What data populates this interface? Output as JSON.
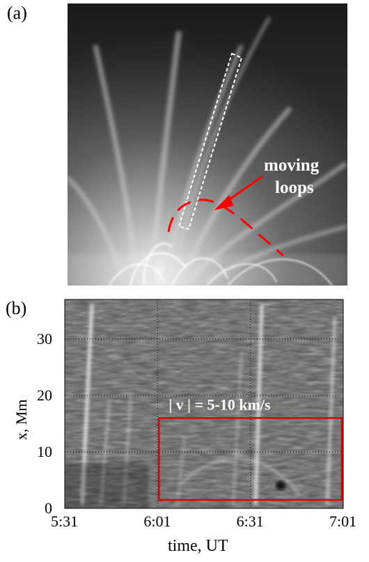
{
  "panel_a": {
    "label": "(a)",
    "annotation": [
      "moving",
      "loops"
    ],
    "colors": {
      "annotation": "#ff0000",
      "box": "#ffffff"
    }
  },
  "panel_b": {
    "label": "(b)",
    "annotation": "| v | = 5-10 km/s",
    "colors": {
      "box": "#e00000",
      "annotation": "#ffffff",
      "grid": "#000000"
    }
  },
  "chart_data": {
    "type": "heatmap",
    "xlabel": "time, UT",
    "ylabel": "x, Mm",
    "x_ticks": [
      "5:31",
      "6:01",
      "6:31",
      "7:01"
    ],
    "y_ticks": [
      "0",
      "10",
      "20",
      "30"
    ],
    "xlim": [
      "5:31",
      "7:01"
    ],
    "ylim": [
      0,
      37
    ],
    "grid": true,
    "highlight_region": {
      "x": [
        "6:01",
        "7:01"
      ],
      "y": [
        1.5,
        16
      ]
    }
  }
}
